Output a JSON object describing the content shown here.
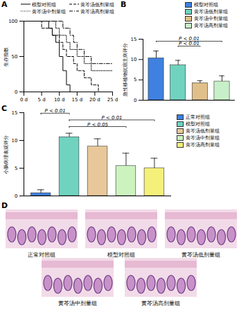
{
  "chart_data": [
    {
      "type": "line",
      "title": "A",
      "y_label": "生存指数",
      "x": [
        0,
        1,
        2,
        3,
        4,
        5,
        6,
        7,
        8,
        9,
        10,
        11,
        12,
        13,
        14,
        15,
        16,
        17,
        18,
        19,
        20,
        21,
        22,
        23,
        24,
        25
      ],
      "xlim": [
        0,
        25
      ],
      "xticks": [
        {
          "value": 0,
          "label": "0 d"
        },
        {
          "value": 5,
          "label": "5 d"
        },
        {
          "value": 10,
          "label": "10 d"
        },
        {
          "value": 15,
          "label": "15 d"
        },
        {
          "value": 20,
          "label": "20 d"
        },
        {
          "value": 25,
          "label": "25 d"
        }
      ],
      "ylim": [
        0,
        100
      ],
      "yticks": [
        0,
        50,
        100
      ],
      "legend": "top",
      "series": [
        {
          "name": "模型对照组",
          "color": "#000000",
          "line_style": "solid",
          "values": [
            100,
            100,
            100,
            100,
            100,
            100,
            100,
            90,
            80,
            70,
            50,
            30,
            10,
            0,
            null,
            null,
            null,
            null,
            null,
            null,
            null,
            null,
            null,
            null,
            null,
            null
          ]
        },
        {
          "name": "黄芩汤低剂量组",
          "color": "#000000",
          "line_style": "dashed",
          "values": [
            100,
            100,
            100,
            100,
            100,
            90,
            90,
            90,
            80,
            80,
            70,
            60,
            50,
            50,
            40,
            30,
            30,
            20,
            20,
            10,
            10,
            0,
            null,
            null,
            null,
            null
          ]
        },
        {
          "name": "黄芩汤中剂量组",
          "color": "#000000",
          "line_style": "dotted",
          "values": [
            100,
            100,
            100,
            100,
            100,
            100,
            100,
            100,
            100,
            90,
            80,
            80,
            70,
            60,
            60,
            50,
            50,
            40,
            40,
            30,
            30,
            30,
            30,
            30,
            30,
            30
          ]
        },
        {
          "name": "黄芩汤高剂量组",
          "color": "#000000",
          "line_style": "dashdot",
          "values": [
            100,
            100,
            100,
            100,
            100,
            100,
            100,
            100,
            100,
            100,
            100,
            90,
            90,
            80,
            70,
            60,
            60,
            50,
            50,
            40,
            40,
            40,
            40,
            40,
            40,
            40
          ]
        }
      ]
    },
    {
      "type": "bar",
      "title": "B",
      "y_label": "急性移植物抗宿主病评分",
      "categories": [
        "模型对照组",
        "黄芩汤低剂量组",
        "黄芩汤中剂量组",
        "黄芩汤高剂量组"
      ],
      "values": [
        10.3,
        8.6,
        4.2,
        4.6
      ],
      "errors": [
        1.8,
        1.2,
        0.6,
        1.4
      ],
      "colors": [
        "#3f80e0",
        "#6fd3c0",
        "#e0c08a",
        "#c8f0c8"
      ],
      "ylim": [
        0,
        15
      ],
      "yticks": [
        0,
        5,
        10,
        15
      ],
      "tick_labels": "y",
      "legend": "top",
      "annotations": [
        {
          "text": "P < 0.01",
          "from": "模型对照组",
          "to": "黄芩汤高剂量组"
        },
        {
          "text": "P < 0.01",
          "from": "黄芩汤低剂量组",
          "to": "黄芩汤中剂量组"
        }
      ]
    },
    {
      "type": "bar",
      "title": "C",
      "y_label": "小肠病理表观评分",
      "categories": [
        "正常对照组",
        "模型对照组",
        "黄芩汤低剂量组",
        "黄芩汤中剂量组",
        "黄芩汤高剂量组"
      ],
      "values": [
        0.5,
        10.6,
        8.9,
        5.4,
        5.0
      ],
      "errors": [
        0.6,
        0.7,
        1.4,
        2.3,
        1.8
      ],
      "colors": [
        "#3f80e0",
        "#6fd3c0",
        "#e8c89a",
        "#ccf2c0",
        "#f5f07a"
      ],
      "ylim": [
        0,
        15
      ],
      "yticks": [
        0,
        5,
        10,
        15
      ],
      "tick_labels": "y",
      "legend": "right",
      "annotations": [
        {
          "text": "P < 0.01",
          "from": "正常对照组",
          "to": "模型对照组"
        },
        {
          "text": "P < 0.01",
          "from": "模型对照组",
          "to": "黄芩汤高剂量组"
        },
        {
          "text": "P < 0.05",
          "from": "模型对照组",
          "to": "黄芩汤中剂量组"
        }
      ]
    }
  ],
  "images": {
    "title": "D",
    "captions": [
      "正常对照组",
      "模型对照组",
      "黄芩汤低剂量组",
      "黄芩汤中剂量组",
      "黄芩汤高剂量组"
    ]
  }
}
